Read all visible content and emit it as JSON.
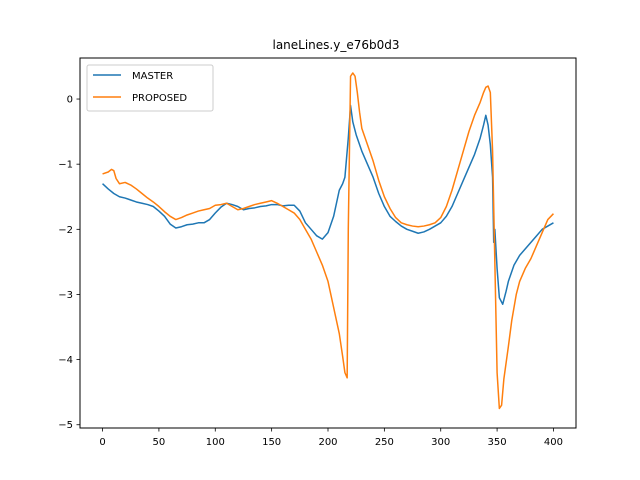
{
  "chart_data": {
    "type": "line",
    "title": "laneLines.y_e76b0d3",
    "xlabel": "",
    "ylabel": "",
    "xlim": [
      -20,
      420
    ],
    "ylim": [
      -5.05,
      0.63
    ],
    "xticks": [
      0,
      50,
      100,
      150,
      200,
      250,
      300,
      350,
      400
    ],
    "yticks": [
      -5,
      -4,
      -3,
      -2,
      -1,
      0
    ],
    "xtick_labels": [
      "0",
      "50",
      "100",
      "150",
      "200",
      "250",
      "300",
      "350",
      "400"
    ],
    "ytick_labels": [
      "−5",
      "−4",
      "−3",
      "−2",
      "−1",
      "0"
    ],
    "grid": false,
    "legend": {
      "location": "top-left"
    },
    "series": [
      {
        "name": "MASTER",
        "color": "#1f77b4",
        "points": [
          [
            0,
            -1.3
          ],
          [
            5,
            -1.38
          ],
          [
            10,
            -1.45
          ],
          [
            15,
            -1.5
          ],
          [
            20,
            -1.52
          ],
          [
            25,
            -1.55
          ],
          [
            30,
            -1.58
          ],
          [
            35,
            -1.6
          ],
          [
            40,
            -1.62
          ],
          [
            45,
            -1.65
          ],
          [
            50,
            -1.72
          ],
          [
            55,
            -1.8
          ],
          [
            60,
            -1.92
          ],
          [
            65,
            -1.98
          ],
          [
            70,
            -1.96
          ],
          [
            75,
            -1.93
          ],
          [
            80,
            -1.92
          ],
          [
            85,
            -1.9
          ],
          [
            90,
            -1.9
          ],
          [
            95,
            -1.85
          ],
          [
            100,
            -1.75
          ],
          [
            105,
            -1.66
          ],
          [
            110,
            -1.6
          ],
          [
            115,
            -1.62
          ],
          [
            120,
            -1.65
          ],
          [
            125,
            -1.7
          ],
          [
            130,
            -1.68
          ],
          [
            135,
            -1.67
          ],
          [
            140,
            -1.65
          ],
          [
            145,
            -1.64
          ],
          [
            150,
            -1.62
          ],
          [
            155,
            -1.62
          ],
          [
            160,
            -1.64
          ],
          [
            165,
            -1.63
          ],
          [
            170,
            -1.63
          ],
          [
            175,
            -1.72
          ],
          [
            180,
            -1.9
          ],
          [
            185,
            -2.0
          ],
          [
            190,
            -2.1
          ],
          [
            195,
            -2.15
          ],
          [
            200,
            -2.05
          ],
          [
            205,
            -1.8
          ],
          [
            210,
            -1.4
          ],
          [
            213,
            -1.3
          ],
          [
            215,
            -1.2
          ],
          [
            218,
            -0.6
          ],
          [
            220,
            -0.1
          ],
          [
            222,
            -0.35
          ],
          [
            225,
            -0.55
          ],
          [
            230,
            -0.8
          ],
          [
            235,
            -1.0
          ],
          [
            240,
            -1.2
          ],
          [
            245,
            -1.45
          ],
          [
            250,
            -1.65
          ],
          [
            255,
            -1.8
          ],
          [
            260,
            -1.88
          ],
          [
            265,
            -1.95
          ],
          [
            270,
            -2.0
          ],
          [
            275,
            -2.03
          ],
          [
            280,
            -2.06
          ],
          [
            285,
            -2.04
          ],
          [
            290,
            -2.0
          ],
          [
            295,
            -1.95
          ],
          [
            300,
            -1.9
          ],
          [
            305,
            -1.8
          ],
          [
            310,
            -1.65
          ],
          [
            315,
            -1.45
          ],
          [
            320,
            -1.25
          ],
          [
            325,
            -1.05
          ],
          [
            330,
            -0.85
          ],
          [
            335,
            -0.6
          ],
          [
            338,
            -0.4
          ],
          [
            340,
            -0.25
          ],
          [
            342,
            -0.4
          ],
          [
            344,
            -0.7
          ],
          [
            346,
            -1.2
          ],
          [
            347,
            -2.2
          ],
          [
            348,
            -2.0
          ],
          [
            349,
            -2.3
          ],
          [
            350,
            -2.6
          ],
          [
            352,
            -3.05
          ],
          [
            355,
            -3.15
          ],
          [
            358,
            -2.95
          ],
          [
            360,
            -2.8
          ],
          [
            365,
            -2.55
          ],
          [
            370,
            -2.4
          ],
          [
            375,
            -2.3
          ],
          [
            380,
            -2.2
          ],
          [
            385,
            -2.1
          ],
          [
            390,
            -2.0
          ],
          [
            395,
            -1.95
          ],
          [
            400,
            -1.9
          ]
        ]
      },
      {
        "name": "PROPOSED",
        "color": "#ff7f0e",
        "points": [
          [
            0,
            -1.15
          ],
          [
            5,
            -1.12
          ],
          [
            8,
            -1.08
          ],
          [
            10,
            -1.1
          ],
          [
            12,
            -1.22
          ],
          [
            15,
            -1.3
          ],
          [
            20,
            -1.28
          ],
          [
            25,
            -1.32
          ],
          [
            30,
            -1.38
          ],
          [
            35,
            -1.45
          ],
          [
            40,
            -1.52
          ],
          [
            45,
            -1.58
          ],
          [
            50,
            -1.65
          ],
          [
            55,
            -1.73
          ],
          [
            60,
            -1.8
          ],
          [
            65,
            -1.85
          ],
          [
            70,
            -1.82
          ],
          [
            75,
            -1.78
          ],
          [
            80,
            -1.75
          ],
          [
            85,
            -1.72
          ],
          [
            90,
            -1.7
          ],
          [
            95,
            -1.68
          ],
          [
            100,
            -1.63
          ],
          [
            105,
            -1.62
          ],
          [
            110,
            -1.6
          ],
          [
            115,
            -1.65
          ],
          [
            120,
            -1.7
          ],
          [
            125,
            -1.68
          ],
          [
            130,
            -1.65
          ],
          [
            135,
            -1.62
          ],
          [
            140,
            -1.6
          ],
          [
            145,
            -1.58
          ],
          [
            150,
            -1.56
          ],
          [
            155,
            -1.6
          ],
          [
            160,
            -1.65
          ],
          [
            165,
            -1.7
          ],
          [
            170,
            -1.75
          ],
          [
            175,
            -1.85
          ],
          [
            180,
            -2.0
          ],
          [
            185,
            -2.15
          ],
          [
            190,
            -2.35
          ],
          [
            195,
            -2.55
          ],
          [
            200,
            -2.8
          ],
          [
            205,
            -3.2
          ],
          [
            210,
            -3.6
          ],
          [
            213,
            -3.95
          ],
          [
            215,
            -4.2
          ],
          [
            217,
            -4.28
          ],
          [
            218,
            -2.0
          ],
          [
            220,
            0.35
          ],
          [
            222,
            0.4
          ],
          [
            224,
            0.35
          ],
          [
            226,
            0.1
          ],
          [
            228,
            -0.2
          ],
          [
            230,
            -0.45
          ],
          [
            235,
            -0.7
          ],
          [
            240,
            -0.95
          ],
          [
            245,
            -1.25
          ],
          [
            250,
            -1.5
          ],
          [
            255,
            -1.68
          ],
          [
            260,
            -1.82
          ],
          [
            265,
            -1.9
          ],
          [
            270,
            -1.93
          ],
          [
            275,
            -1.95
          ],
          [
            280,
            -1.96
          ],
          [
            285,
            -1.95
          ],
          [
            290,
            -1.93
          ],
          [
            295,
            -1.9
          ],
          [
            300,
            -1.82
          ],
          [
            305,
            -1.65
          ],
          [
            310,
            -1.4
          ],
          [
            315,
            -1.1
          ],
          [
            320,
            -0.8
          ],
          [
            325,
            -0.5
          ],
          [
            330,
            -0.25
          ],
          [
            335,
            -0.05
          ],
          [
            338,
            0.1
          ],
          [
            340,
            0.18
          ],
          [
            342,
            0.2
          ],
          [
            344,
            0.1
          ],
          [
            346,
            -0.8
          ],
          [
            348,
            -2.5
          ],
          [
            350,
            -4.2
          ],
          [
            352,
            -4.75
          ],
          [
            354,
            -4.7
          ],
          [
            356,
            -4.3
          ],
          [
            360,
            -3.8
          ],
          [
            363,
            -3.4
          ],
          [
            367,
            -3.0
          ],
          [
            370,
            -2.8
          ],
          [
            375,
            -2.6
          ],
          [
            380,
            -2.45
          ],
          [
            385,
            -2.25
          ],
          [
            390,
            -2.05
          ],
          [
            395,
            -1.85
          ],
          [
            400,
            -1.76
          ]
        ]
      }
    ]
  }
}
